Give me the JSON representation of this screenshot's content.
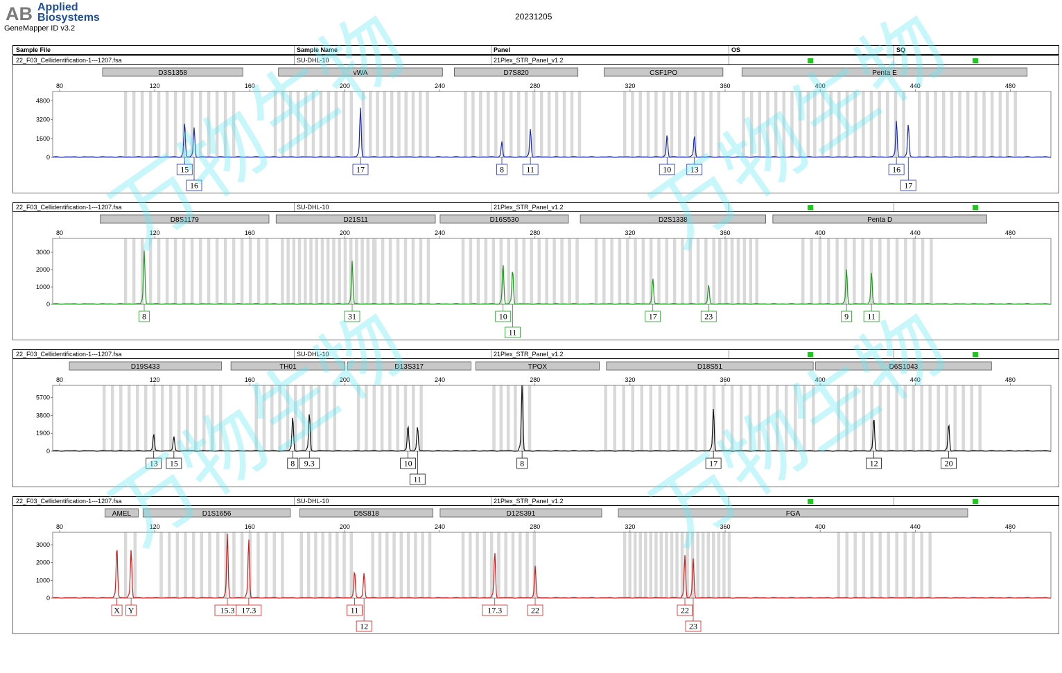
{
  "header": {
    "logo_mark": "AB",
    "logo_line1": "Applied",
    "logo_line2": "Biosystems",
    "software": "GeneMapper ID v3.2",
    "run_date": "20231205",
    "watermark": "万物生物"
  },
  "columns": {
    "sample_file": "Sample File",
    "sample_name": "Sample Name",
    "panel": "Panel",
    "os": "OS",
    "sq": "SQ"
  },
  "chart_data": [
    {
      "type": "line",
      "sample_file": "22_F03_Cellidentification-1---1207.fsa",
      "sample_name": "SU-DHL-10",
      "panel": "21Plex_STR_Panel_v1.2",
      "color": "#1a2bb0",
      "xlim": [
        80,
        500
      ],
      "x_ticks": [
        80,
        120,
        160,
        200,
        240,
        280,
        320,
        360,
        400,
        440,
        480
      ],
      "ylim": [
        0,
        5600
      ],
      "y_ticks": [
        0,
        1600,
        3200,
        4800
      ],
      "markers": [
        {
          "name": "D3S1358",
          "start": 101,
          "end": 160
        },
        {
          "name": "vWA",
          "start": 175,
          "end": 244
        },
        {
          "name": "D7S820",
          "start": 249,
          "end": 301
        },
        {
          "name": "CSF1PO",
          "start": 312,
          "end": 362
        },
        {
          "name": "Penta E",
          "start": 370,
          "end": 490
        }
      ],
      "bins": [
        [
          110,
          158,
          3.5
        ],
        [
          173,
          208,
          3.2
        ],
        [
          210,
          238,
          3.0
        ],
        [
          253,
          302,
          3.2
        ],
        [
          320,
          360,
          3.3
        ],
        [
          370,
          400,
          3.4
        ],
        [
          400,
          440,
          3.4
        ],
        [
          444,
          478,
          3.4
        ],
        [
          481,
          487,
          3.4
        ]
      ],
      "peaks": [
        {
          "x": 135.5,
          "h": 2900,
          "label": "15",
          "row": 0
        },
        {
          "x": 139.5,
          "h": 2500,
          "label": "16",
          "row": 1
        },
        {
          "x": 209.5,
          "h": 4200,
          "label": "17",
          "row": 0
        },
        {
          "x": 269,
          "h": 1300,
          "label": "8",
          "row": 0
        },
        {
          "x": 281,
          "h": 2400,
          "label": "11",
          "row": 0
        },
        {
          "x": 338.5,
          "h": 1900,
          "label": "10",
          "row": 0
        },
        {
          "x": 350,
          "h": 1800,
          "label": "13",
          "row": 0
        },
        {
          "x": 435,
          "h": 3100,
          "label": "16",
          "row": 0
        },
        {
          "x": 440,
          "h": 2800,
          "label": "17",
          "row": 1
        }
      ]
    },
    {
      "type": "line",
      "sample_file": "22_F03_Cellidentification-1---1207.fsa",
      "sample_name": "SU-DHL-10",
      "panel": "21Plex_STR_Panel_v1.2",
      "color": "#1e9a1e",
      "xlim": [
        80,
        500
      ],
      "x_ticks": [
        80,
        120,
        160,
        200,
        240,
        280,
        320,
        360,
        400,
        440,
        480
      ],
      "ylim": [
        0,
        3800
      ],
      "y_ticks": [
        0,
        1000,
        2000,
        3000
      ],
      "markers": [
        {
          "name": "D8S1179",
          "start": 100,
          "end": 171
        },
        {
          "name": "D21S11",
          "start": 174,
          "end": 241
        },
        {
          "name": "D16S530",
          "start": 243,
          "end": 297
        },
        {
          "name": "D2S1338",
          "start": 302,
          "end": 380
        },
        {
          "name": "Penta D",
          "start": 383,
          "end": 473
        }
      ],
      "bins": [
        [
          110,
          170,
          3.5
        ],
        [
          176,
          215,
          2.4
        ],
        [
          215,
          238,
          3.2
        ],
        [
          252,
          300,
          3.2
        ],
        [
          308,
          360,
          3.3
        ],
        [
          360,
          378,
          2.6
        ],
        [
          395,
          452,
          3.6
        ]
      ],
      "peaks": [
        {
          "x": 118.5,
          "h": 3100,
          "label": "8",
          "row": 0
        },
        {
          "x": 206,
          "h": 2500,
          "label": "31",
          "row": 0
        },
        {
          "x": 269.5,
          "h": 2300,
          "label": "10",
          "row": 0
        },
        {
          "x": 273.5,
          "h": 2000,
          "label": "11",
          "row": 1
        },
        {
          "x": 332.5,
          "h": 1500,
          "label": "17",
          "row": 0
        },
        {
          "x": 356,
          "h": 1100,
          "label": "23",
          "row": 0
        },
        {
          "x": 414,
          "h": 2000,
          "label": "9",
          "row": 0
        },
        {
          "x": 424.5,
          "h": 1800,
          "label": "11",
          "row": 0
        }
      ]
    },
    {
      "type": "line",
      "sample_file": "22_F03_Cellidentification-1---1207.fsa",
      "sample_name": "SU-DHL-10",
      "panel": "21Plex_STR_Panel_v1.2",
      "color": "#111111",
      "xlim": [
        80,
        500
      ],
      "x_ticks": [
        80,
        120,
        160,
        200,
        240,
        280,
        320,
        360,
        400,
        440,
        480
      ],
      "ylim": [
        0,
        7000
      ],
      "y_ticks": [
        0,
        1900,
        3800,
        5700
      ],
      "markers": [
        {
          "name": "D19S433",
          "start": 87,
          "end": 151
        },
        {
          "name": "TH01",
          "start": 155,
          "end": 203
        },
        {
          "name": "D13S317",
          "start": 204,
          "end": 256
        },
        {
          "name": "TPOX",
          "start": 258,
          "end": 310
        },
        {
          "name": "D18S51",
          "start": 313,
          "end": 400
        },
        {
          "name": "D6S1043",
          "start": 401,
          "end": 475
        }
      ],
      "bins": [
        [
          101,
          150,
          3.5
        ],
        [
          165,
          200,
          3.3
        ],
        [
          208,
          235,
          3.3
        ],
        [
          265,
          282,
          3.0
        ],
        [
          312,
          400,
          3.8
        ],
        [
          410,
          470,
          3.5
        ]
      ],
      "peaks": [
        {
          "x": 122.5,
          "h": 1800,
          "label": "13",
          "row": 0
        },
        {
          "x": 131,
          "h": 1500,
          "label": "15",
          "row": 0
        },
        {
          "x": 181,
          "h": 3600,
          "label": "8",
          "row": 0
        },
        {
          "x": 188,
          "h": 4000,
          "label": "9.3",
          "row": 0
        },
        {
          "x": 229.5,
          "h": 2700,
          "label": "10",
          "row": 0
        },
        {
          "x": 233.5,
          "h": 2600,
          "label": "11",
          "row": 1
        },
        {
          "x": 277.5,
          "h": 7000,
          "label": "8",
          "row": 0
        },
        {
          "x": 358,
          "h": 4500,
          "label": "17",
          "row": 0
        },
        {
          "x": 425.5,
          "h": 3500,
          "label": "12",
          "row": 0
        },
        {
          "x": 457,
          "h": 2900,
          "label": "20",
          "row": 0
        }
      ]
    },
    {
      "type": "line",
      "sample_file": "22_F03_Cellidentification-1---1207.fsa",
      "sample_name": "SU-DHL-10",
      "panel": "21Plex_STR_Panel_v1.2",
      "color": "#d01c1c",
      "xlim": [
        80,
        500
      ],
      "x_ticks": [
        80,
        120,
        160,
        200,
        240,
        280,
        320,
        360,
        400,
        440,
        480
      ],
      "ylim": [
        0,
        3700
      ],
      "y_ticks": [
        0,
        1000,
        2000,
        3000
      ],
      "markers": [
        {
          "name": "AMEL",
          "start": 102,
          "end": 116
        },
        {
          "name": "D1S1656",
          "start": 118,
          "end": 180
        },
        {
          "name": "D5S818",
          "start": 184,
          "end": 240
        },
        {
          "name": "D12S391",
          "start": 243,
          "end": 311
        },
        {
          "name": "FGA",
          "start": 318,
          "end": 465
        }
      ],
      "bins": [
        [
          110,
          114,
          4.0
        ],
        [
          125,
          178,
          3.4
        ],
        [
          184,
          205,
          3.0
        ],
        [
          214,
          238,
          3.0
        ],
        [
          252,
          282,
          3.0
        ],
        [
          320,
          365,
          2.2
        ],
        [
          410,
          450,
          3.5
        ]
      ],
      "peaks": [
        {
          "x": 107,
          "h": 2900,
          "label": "X",
          "row": 0
        },
        {
          "x": 113,
          "h": 2700,
          "label": "Y",
          "row": 0
        },
        {
          "x": 153.5,
          "h": 3600,
          "label": "15.3",
          "row": 0
        },
        {
          "x": 162.5,
          "h": 3300,
          "label": "17.3",
          "row": 0
        },
        {
          "x": 207,
          "h": 1500,
          "label": "11",
          "row": 0
        },
        {
          "x": 211,
          "h": 1400,
          "label": "12",
          "row": 1
        },
        {
          "x": 266,
          "h": 2600,
          "label": "17.3",
          "row": 0
        },
        {
          "x": 283,
          "h": 1800,
          "label": "22",
          "row": 0
        },
        {
          "x": 346,
          "h": 2400,
          "label": "22",
          "row": 0
        },
        {
          "x": 349.5,
          "h": 2200,
          "label": "23",
          "row": 1
        }
      ]
    }
  ]
}
